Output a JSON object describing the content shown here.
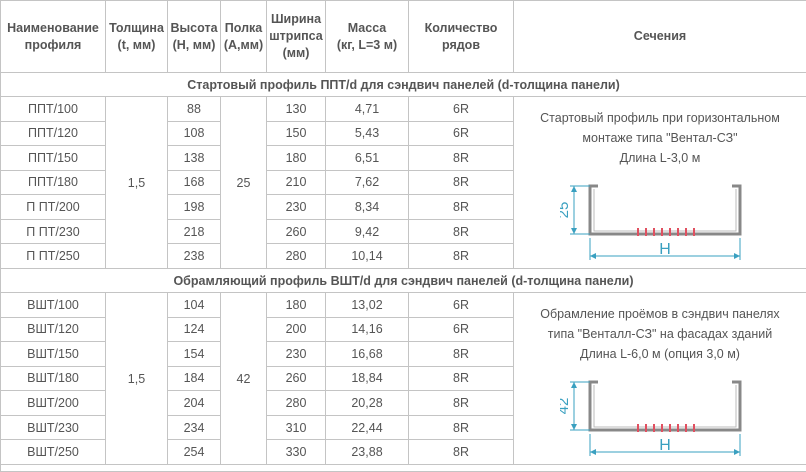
{
  "header": {
    "columns": [
      [
        "Наименование",
        "профиля"
      ],
      [
        "Толщина",
        "(t, мм)"
      ],
      [
        "Высота",
        "(H, мм)"
      ],
      [
        "Полка",
        "(А,мм)"
      ],
      [
        "Ширина",
        "штрипса",
        "(мм)"
      ],
      [
        "Масса",
        "(кг, L=3 м)"
      ],
      [
        "Количество",
        "рядов"
      ],
      [
        "Сечения"
      ]
    ]
  },
  "sections": [
    {
      "title": "Стартовый профиль ППТ/d для сэндвич панелей (d-толщина панели)",
      "thickness": "1,5",
      "flange": "25",
      "rows": [
        [
          "ППТ/100",
          "88",
          "130",
          "4,71",
          "6R"
        ],
        [
          "ППТ/120",
          "108",
          "150",
          "5,43",
          "6R"
        ],
        [
          "ППТ/150",
          "138",
          "180",
          "6,51",
          "8R"
        ],
        [
          "ППТ/180",
          "168",
          "210",
          "7,62",
          "8R"
        ],
        [
          "П ПТ/200",
          "198",
          "230",
          "8,34",
          "8R"
        ],
        [
          "П ПТ/230",
          "218",
          "260",
          "9,42",
          "8R"
        ],
        [
          "П ПТ/250",
          "238",
          "280",
          "10,14",
          "8R"
        ]
      ],
      "description": [
        "Стартовый профиль при горизонтальном",
        "монтаже типа \"Вентал-СЗ\"",
        "Длина L-3,0 м"
      ],
      "dim_height": "25",
      "dim_width": "H"
    },
    {
      "title": "Обрамляющий профиль ВШТ/d для сэндвич панелей (d-толщина панели)",
      "thickness": "1,5",
      "flange": "42",
      "rows": [
        [
          "ВШТ/100",
          "104",
          "180",
          "13,02",
          "6R"
        ],
        [
          "ВШТ/120",
          "124",
          "200",
          "14,16",
          "6R"
        ],
        [
          "ВШТ/150",
          "154",
          "230",
          "16,68",
          "8R"
        ],
        [
          "ВШТ/180",
          "184",
          "260",
          "18,84",
          "8R"
        ],
        [
          "ВШТ/200",
          "204",
          "280",
          "20,28",
          "8R"
        ],
        [
          "ВШТ/230",
          "234",
          "310",
          "22,44",
          "8R"
        ],
        [
          "ВШТ/250",
          "254",
          "330",
          "23,88",
          "8R"
        ]
      ],
      "description": [
        "Обрамление проёмов в сэндвич панелях",
        "типа \"Венталл-СЗ\" на фасадах зданий",
        "Длина L-6,0 м (опция 3,0 м)"
      ],
      "dim_height": "42",
      "dim_width": "H"
    }
  ]
}
